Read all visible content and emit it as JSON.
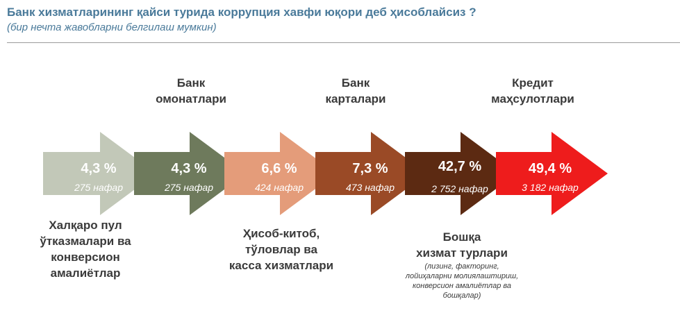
{
  "header": {
    "title": "Банк хизматларининг қайси турида коррупция хавфи юқори деб ҳисоблайсиз ?",
    "subtitle": "(бир нечта жавобларни белгилаш мумкин)"
  },
  "chart_data": {
    "type": "arrow-sequence",
    "categories": [
      "Халқаро пул ўтказмалари ва конверсион амалиётлар",
      "Банк омонатлари",
      "Ҳисоб-китоб, тўловлар ва касса хизматлари",
      "Банк карталари",
      "Бошқа хизмат турлари",
      "Кредит маҳсулотлари"
    ],
    "values": [
      4.3,
      4.3,
      6.6,
      7.3,
      42.7,
      49.4
    ],
    "value_labels": [
      "4,3 %",
      "4,3 %",
      "6,6 %",
      "7,3 %",
      "42,7 %",
      "49,4 %"
    ],
    "counts": [
      "275 нафар",
      "275 нафар",
      "424 нафар",
      "473 нафар",
      "2 752 нафар",
      "3 182 нафар"
    ],
    "colors": [
      "#c2c8b8",
      "#6e7a5c",
      "#e49c7a",
      "#9a4a26",
      "#5c2a12",
      "#ee1c1c"
    ]
  },
  "labels": {
    "item1": [
      "Халқаро пул",
      "ўтказмалари ва",
      "конверсион",
      "амалиётлар"
    ],
    "item2": [
      "Банк",
      "омонатлари"
    ],
    "item3": [
      "Ҳисоб-китоб,",
      "тўловлар ва",
      "касса хизматлари"
    ],
    "item4": [
      "Банк",
      "карталари"
    ],
    "item5": [
      "Бошқа",
      "хизмат турлари"
    ],
    "item5_note": [
      "(лизинг, факторинг,",
      "лойиҳаларни молиялаштириш,",
      "конверсион амалиётлар ва",
      "бошқалар)"
    ],
    "item6": [
      "Кредит",
      "маҳсулотлари"
    ]
  }
}
